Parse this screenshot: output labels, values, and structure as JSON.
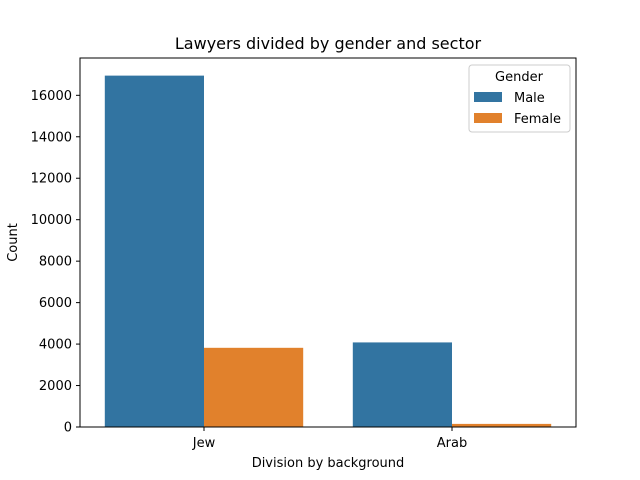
{
  "chart_data": {
    "type": "bar",
    "title": "Lawyers divided by gender and sector",
    "xlabel": "Division by background",
    "ylabel": "Count",
    "categories": [
      "Jew",
      "Arab"
    ],
    "series": [
      {
        "name": "Male",
        "values": [
          16950,
          4080
        ],
        "color": "#3274a1"
      },
      {
        "name": "Female",
        "values": [
          3820,
          150
        ],
        "color": "#e1812c"
      }
    ],
    "ylim": [
      0,
      17800
    ],
    "yticks": [
      0,
      2000,
      4000,
      6000,
      8000,
      10000,
      12000,
      14000,
      16000
    ],
    "grid": false,
    "legend": {
      "title": "Gender",
      "placement": "top-right"
    }
  }
}
